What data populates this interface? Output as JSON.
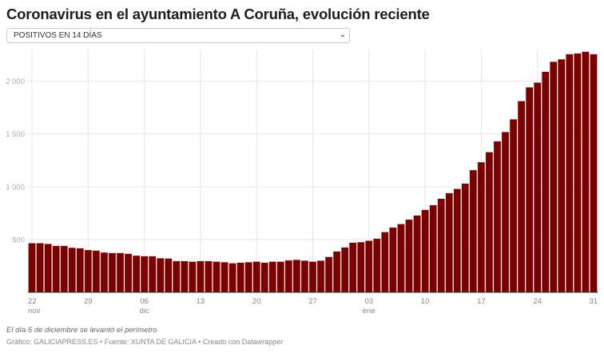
{
  "title": "Coronavirus en el ayuntamiento A Coruña, evolución reciente",
  "selector": {
    "selected": "POSITIVOS EN 14 DÍAS",
    "icon": "chevron-down-icon"
  },
  "notes": "El día 5 de diciembre se levantó el perímetro",
  "source": "Gráfico: GALICIAPRESS.ES • Fuente: XUNTA DE GALICIA • Creado con Datawrapper",
  "chart_data": {
    "type": "bar",
    "start_date": "2020-11-22",
    "end_date": "2021-01-31",
    "values": [
      466,
      466,
      459,
      441,
      441,
      423,
      418,
      401,
      396,
      378,
      373,
      373,
      366,
      348,
      343,
      343,
      323,
      321,
      296,
      296,
      291,
      296,
      296,
      291,
      286,
      276,
      281,
      286,
      291,
      281,
      291,
      291,
      303,
      308,
      300,
      291,
      300,
      336,
      388,
      426,
      471,
      476,
      489,
      509,
      571,
      614,
      647,
      689,
      729,
      782,
      827,
      887,
      940,
      980,
      1030,
      1158,
      1233,
      1328,
      1431,
      1519,
      1639,
      1812,
      1942,
      1987,
      2090,
      2185,
      2208,
      2256,
      2263,
      2280,
      2256
    ],
    "ylim": [
      0,
      2300
    ],
    "y_ticks": [
      {
        "value": 500,
        "label": "500"
      },
      {
        "value": 1000,
        "label": "1 000"
      },
      {
        "value": 1500,
        "label": "1 500"
      },
      {
        "value": 2000,
        "label": "2 000"
      }
    ],
    "x_ticks": [
      {
        "day": 0,
        "label": "22",
        "sub": "nov"
      },
      {
        "day": 7,
        "label": "29",
        "sub": ""
      },
      {
        "day": 14,
        "label": "06",
        "sub": "dic"
      },
      {
        "day": 21,
        "label": "13",
        "sub": ""
      },
      {
        "day": 28,
        "label": "20",
        "sub": ""
      },
      {
        "day": 35,
        "label": "27",
        "sub": ""
      },
      {
        "day": 42,
        "label": "03",
        "sub": "ene"
      },
      {
        "day": 49,
        "label": "10",
        "sub": ""
      },
      {
        "day": 56,
        "label": "17",
        "sub": ""
      },
      {
        "day": 63,
        "label": "24",
        "sub": ""
      },
      {
        "day": 70,
        "label": "31",
        "sub": ""
      }
    ],
    "grid": true,
    "bar_color": "#7a0000"
  }
}
